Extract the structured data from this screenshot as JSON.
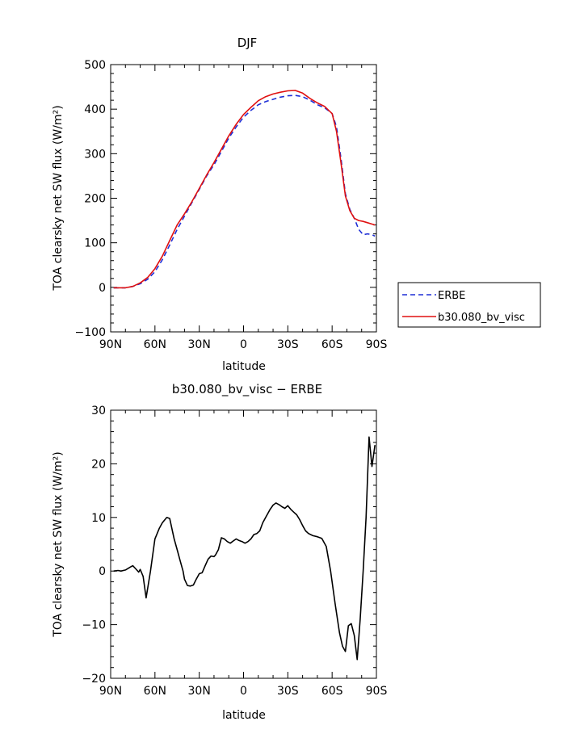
{
  "chart_data": [
    {
      "type": "line",
      "title": "DJF",
      "xlabel": "latitude",
      "ylabel": "TOA clearsky net SW flux (W/m²)",
      "xlim": [
        90,
        -90
      ],
      "ylim": [
        -100,
        500
      ],
      "xticks": [
        90,
        60,
        30,
        0,
        -30,
        -60,
        -90
      ],
      "xtick_labels": [
        "90N",
        "60N",
        "30N",
        "0",
        "30S",
        "60S",
        "90S"
      ],
      "yticks": [
        -100,
        0,
        100,
        200,
        300,
        400,
        500
      ],
      "ytick_labels": [
        "−100",
        "0",
        "100",
        "200",
        "300",
        "400",
        "500"
      ],
      "series": [
        {
          "name": "ERBE",
          "color": "#1f2fd6",
          "dash": "dashed",
          "x": [
            88,
            85,
            80,
            75,
            70,
            65,
            60,
            55,
            50,
            45,
            40,
            35,
            30,
            25,
            20,
            15,
            10,
            5,
            0,
            -5,
            -10,
            -15,
            -20,
            -25,
            -30,
            -35,
            -40,
            -45,
            -50,
            -55,
            -60,
            -63,
            -66,
            -69,
            -72,
            -75,
            -78,
            -81,
            -84,
            -87,
            -89
          ],
          "y": [
            -1,
            -1,
            -1,
            2,
            8,
            18,
            35,
            62,
            95,
            130,
            160,
            190,
            220,
            250,
            275,
            305,
            335,
            360,
            382,
            397,
            410,
            417,
            422,
            427,
            430,
            431,
            428,
            420,
            410,
            403,
            390,
            360,
            290,
            210,
            175,
            155,
            130,
            118,
            120,
            118,
            115
          ]
        },
        {
          "name": "b30.080_bv_visc",
          "color": "#e01010",
          "dash": "solid",
          "x": [
            88,
            85,
            80,
            75,
            70,
            65,
            60,
            55,
            50,
            45,
            40,
            35,
            30,
            25,
            20,
            15,
            10,
            5,
            0,
            -5,
            -10,
            -15,
            -20,
            -25,
            -30,
            -35,
            -40,
            -45,
            -50,
            -55,
            -60,
            -63,
            -66,
            -69,
            -72,
            -75,
            -78,
            -81,
            -84,
            -87,
            -89
          ],
          "y": [
            -1,
            -1,
            -1,
            2,
            10,
            22,
            42,
            70,
            105,
            140,
            165,
            192,
            222,
            252,
            280,
            310,
            340,
            366,
            388,
            404,
            419,
            428,
            434,
            438,
            441,
            442,
            436,
            424,
            414,
            406,
            390,
            350,
            280,
            205,
            172,
            155,
            150,
            148,
            145,
            142,
            140
          ]
        }
      ],
      "legend": {
        "position": "right"
      }
    },
    {
      "type": "line",
      "title": "b30.080_bv_visc − ERBE",
      "xlabel": "latitude",
      "ylabel": "TOA clearsky net SW flux (W/m²)",
      "xlim": [
        90,
        -90
      ],
      "ylim": [
        -20,
        30
      ],
      "xticks": [
        90,
        60,
        30,
        0,
        -30,
        -60,
        -90
      ],
      "xtick_labels": [
        "90N",
        "60N",
        "30N",
        "0",
        "30S",
        "60S",
        "90S"
      ],
      "yticks": [
        -20,
        -10,
        0,
        10,
        20,
        30
      ],
      "ytick_labels": [
        "−20",
        "−10",
        "0",
        "10",
        "20",
        "30"
      ],
      "series": [
        {
          "color": "#000000",
          "dash": "solid",
          "x": [
            88,
            85,
            83,
            80,
            77,
            75,
            73,
            71,
            70,
            68,
            66,
            63,
            60,
            57,
            55,
            52,
            50,
            47,
            45,
            43,
            41,
            40,
            38,
            36,
            34,
            32,
            30,
            28,
            26,
            24,
            22,
            20,
            19,
            17,
            15,
            13,
            11,
            9,
            7,
            5,
            3,
            1,
            -1,
            -3,
            -5,
            -7,
            -9,
            -11,
            -13,
            -15,
            -16,
            -18,
            -20,
            -22,
            -24,
            -26,
            -28,
            -30,
            -32,
            -34,
            -36,
            -38,
            -40,
            -42,
            -44,
            -47,
            -50,
            -53,
            -56,
            -59,
            -62,
            -65,
            -67,
            -69,
            -71,
            -73,
            -75,
            -77,
            -79,
            -81,
            -83,
            -85,
            -87,
            -89
          ],
          "y": [
            0,
            0.1,
            0,
            0.2,
            0.7,
            1,
            0.4,
            -0.2,
            0.3,
            -1,
            -5,
            0,
            6,
            8,
            9,
            10,
            9.8,
            6,
            4,
            2,
            0,
            -1.5,
            -2.7,
            -2.8,
            -2.6,
            -1.5,
            -0.5,
            -0.3,
            1,
            2.2,
            2.8,
            2.7,
            3,
            4,
            6.2,
            6,
            5.5,
            5.2,
            5.6,
            6,
            5.7,
            5.5,
            5.2,
            5.5,
            6,
            6.8,
            7,
            7.5,
            9,
            10,
            10.5,
            11.5,
            12.3,
            12.7,
            12.4,
            12,
            11.7,
            12.2,
            11.5,
            11,
            10.5,
            9.6,
            8.5,
            7.5,
            7,
            6.6,
            6.4,
            6.1,
            4.6,
            0,
            -6,
            -11.5,
            -14,
            -15,
            -10.2,
            -9.8,
            -12,
            -16.5,
            -9,
            0,
            10,
            25,
            19.5,
            23.5
          ]
        }
      ]
    }
  ]
}
